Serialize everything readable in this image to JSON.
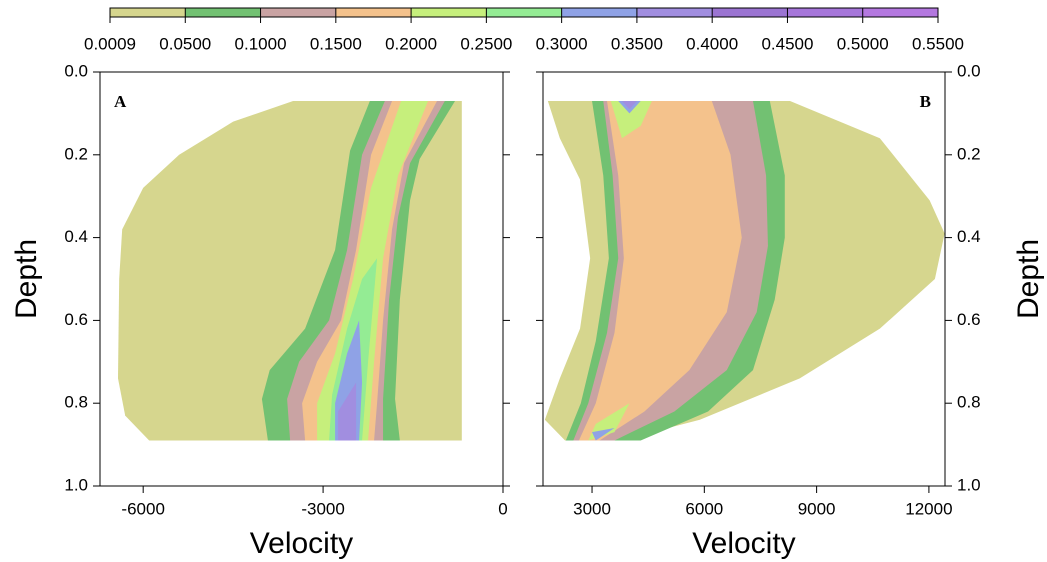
{
  "colorbar": {
    "levels": [
      0.0009,
      {
        "value": 0.05,
        "label": "0.0500"
      },
      {
        "value": 0.1,
        "label": "0.1000"
      },
      {
        "value": 0.15,
        "label": "0.1500"
      },
      {
        "value": 0.2,
        "label": "0.2000"
      },
      {
        "value": 0.25,
        "label": "0.2500"
      },
      {
        "value": 0.3,
        "label": "0.3000"
      },
      {
        "value": 0.35,
        "label": "0.3500"
      },
      {
        "value": 0.4,
        "label": "0.4000"
      },
      {
        "value": 0.45,
        "label": "0.4500"
      },
      {
        "value": 0.5,
        "label": "0.5000"
      },
      {
        "value": 0.55,
        "label": "0.5500"
      }
    ],
    "colors": [
      "#d6d68e",
      "#72c172",
      "#c9a3a3",
      "#f4c28c",
      "#c6ef7c",
      "#94ec94",
      "#8fa2e6",
      "#a18ee0",
      "#9b74d2",
      "#a676da",
      "#b478e0"
    ]
  },
  "chart_data": [
    {
      "type": "contour",
      "annotation": "A",
      "xlabel": "Velocity",
      "ylabel": "Depth",
      "yaxis_side": "left",
      "xlim": [
        -6720,
        0
      ],
      "xticks": [
        -6000,
        -3000,
        0
      ],
      "ylim": [
        0,
        1
      ],
      "y_inverted": true,
      "yticks": [
        {
          "value": 0,
          "label": "0.0"
        },
        0.2,
        0.4,
        0.6,
        0.8,
        {
          "value": 1,
          "label": "1.0"
        }
      ],
      "regions": [
        [
          {
            "x": [
              -3500,
              -687,
              -687,
              -5900,
              -6300,
              -6420,
              -6400,
              -6350,
              -6000,
              -5400,
              -4500
            ],
            "y": [
              0.07,
              0.07,
              0.89,
              0.89,
              0.83,
              0.74,
              0.5,
              0.38,
              0.28,
              0.2,
              0.12
            ]
          }
        ],
        [
          {
            "x": [
              -2220,
              -800,
              -1390,
              -1550,
              -1720,
              -1800,
              -1720,
              -3920,
              -4020,
              -3890,
              -3300,
              -2800,
              -2550
            ],
            "y": [
              0.07,
              0.07,
              0.21,
              0.31,
              0.55,
              0.79,
              0.89,
              0.89,
              0.79,
              0.72,
              0.62,
              0.43,
              0.19
            ]
          }
        ],
        [
          {
            "x": [
              -1970,
              -970,
              -1550,
              -1750,
              -1900,
              -2000,
              -2000,
              -3550,
              -3600,
              -3400,
              -2900,
              -2600,
              -2350
            ],
            "y": [
              0.07,
              0.07,
              0.22,
              0.35,
              0.55,
              0.79,
              0.89,
              0.89,
              0.79,
              0.7,
              0.6,
              0.43,
              0.2
            ]
          }
        ],
        [
          {
            "x": [
              -1850,
              -1100,
              -1650,
              -1850,
              -2000,
              -2100,
              -2150,
              -3300,
              -3350,
              -3100,
              -2700,
              -2450,
              -2200
            ],
            "y": [
              0.07,
              0.07,
              0.22,
              0.38,
              0.6,
              0.8,
              0.89,
              0.89,
              0.8,
              0.7,
              0.6,
              0.43,
              0.2
            ]
          }
        ],
        [
          {
            "x": [
              -1700,
              -1250,
              -1750,
              -2000,
              -2150,
              -2250,
              -3100,
              -3100,
              -2800,
              -2500,
              -2200
            ],
            "y": [
              0.07,
              0.07,
              0.25,
              0.45,
              0.7,
              0.89,
              0.89,
              0.8,
              0.68,
              0.5,
              0.28
            ]
          }
        ],
        [
          {
            "x": [
              -2100,
              -2250,
              -2350,
              -2900,
              -2850,
              -2600,
              -2350
            ],
            "y": [
              0.45,
              0.7,
              0.89,
              0.89,
              0.78,
              0.62,
              0.5
            ]
          }
        ],
        [
          {
            "x": [
              -2400,
              -2350,
              -2400,
              -2800,
              -2800,
              -2600
            ],
            "y": [
              0.6,
              0.75,
              0.89,
              0.89,
              0.8,
              0.68
            ]
          }
        ],
        [
          {
            "x": [
              -2450,
              -2450,
              -2750,
              -2750
            ],
            "y": [
              0.75,
              0.89,
              0.89,
              0.82
            ]
          }
        ],
        [],
        [],
        []
      ]
    },
    {
      "type": "contour",
      "annotation": "B",
      "xlabel": "Velocity",
      "ylabel": "Depth",
      "yaxis_side": "right",
      "xlim": [
        1690,
        12430
      ],
      "xticks": [
        3000,
        6000,
        9000,
        12000
      ],
      "ylim": [
        0,
        1
      ],
      "y_inverted": true,
      "yticks": [
        {
          "value": 0,
          "label": "0.0"
        },
        0.2,
        0.4,
        0.6,
        0.8,
        {
          "value": 1,
          "label": "1.0"
        }
      ],
      "regions": [
        [
          {
            "x": [
              1820,
              8290,
              10690,
              12020,
              12420,
              12160,
              10690,
              8550,
              5880,
              3750,
              2280,
              1740,
              2140,
              2680,
              2950,
              2680,
              2140
            ],
            "y": [
              0.07,
              0.07,
              0.16,
              0.31,
              0.39,
              0.5,
              0.62,
              0.74,
              0.84,
              0.89,
              0.89,
              0.84,
              0.74,
              0.62,
              0.45,
              0.26,
              0.16
            ]
          }
        ],
        [
          {
            "x": [
              3000,
              7750,
              8150,
              8150,
              7880,
              7300,
              6100,
              4300,
              2300,
              2700,
              3100,
              3450,
              3300
            ],
            "y": [
              0.07,
              0.07,
              0.25,
              0.4,
              0.55,
              0.72,
              0.82,
              0.89,
              0.89,
              0.8,
              0.65,
              0.45,
              0.25
            ]
          }
        ],
        [
          {
            "x": [
              3300,
              7300,
              7650,
              7700,
              7400,
              6600,
              5200,
              3600,
              2500,
              2900,
              3400,
              3700,
              3550
            ],
            "y": [
              0.07,
              0.07,
              0.25,
              0.42,
              0.58,
              0.72,
              0.82,
              0.89,
              0.89,
              0.8,
              0.63,
              0.45,
              0.25
            ]
          }
        ],
        [
          {
            "x": [
              3400,
              6200,
              6700,
              7000,
              6600,
              5600,
              4400,
              3200,
              2650,
              3100,
              3600,
              3850,
              3700
            ],
            "y": [
              0.07,
              0.07,
              0.2,
              0.4,
              0.58,
              0.72,
              0.82,
              0.89,
              0.89,
              0.8,
              0.63,
              0.45,
              0.25
            ]
          }
        ],
        [
          {
            "x": [
              3500,
              4600,
              4300,
              3800
            ],
            "y": [
              0.07,
              0.07,
              0.13,
              0.16
            ]
          },
          {
            "x": [
              3100,
              4000,
              3600,
              2900
            ],
            "y": [
              0.85,
              0.8,
              0.87,
              0.89
            ]
          }
        ],
        [],
        [
          {
            "x": [
              3700,
              4300,
              4000
            ],
            "y": [
              0.07,
              0.07,
              0.1
            ]
          },
          {
            "x": [
              3000,
              3600,
              3100
            ],
            "y": [
              0.87,
              0.86,
              0.89
            ]
          }
        ],
        [
          {
            "x": [
              3800,
              4200,
              4000
            ],
            "y": [
              0.07,
              0.07,
              0.09
            ]
          }
        ],
        [],
        [],
        []
      ]
    }
  ]
}
